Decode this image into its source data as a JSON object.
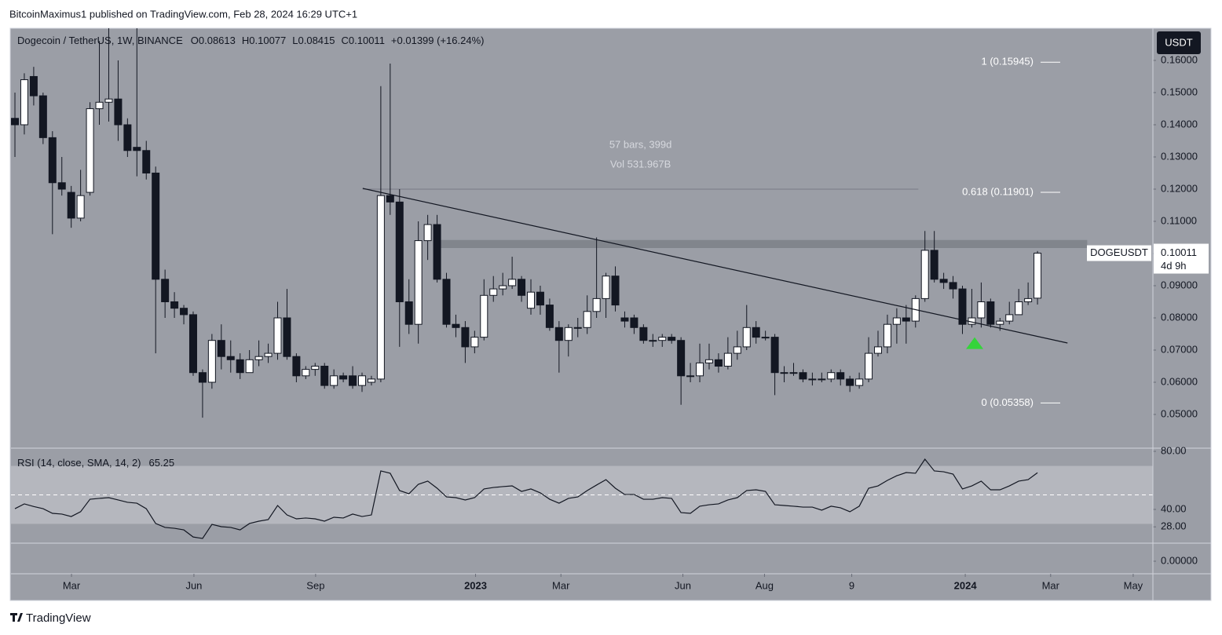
{
  "page": {
    "published": "BitcoinMaximus1 published on TradingView.com, Feb 28, 2024 16:29 UTC+1",
    "brand": "TradingView",
    "currency": "USDT",
    "lower_pane_ticks": [
      {
        "value": 0,
        "label": "0.00000"
      }
    ]
  },
  "chart_data": [
    {
      "type": "candlestick",
      "title": "Dogecoin / TetherUS, 1W, BINANCE",
      "ohlc_labels": [
        "O",
        "H",
        "L",
        "C"
      ],
      "change_label": "+0.01399 (+16.24%)",
      "last_price": {
        "symbol": "DOGEUSDT",
        "countdown": "4d 9h"
      },
      "x": [
        0,
        1,
        2,
        3,
        4,
        5,
        6,
        7,
        8,
        9,
        10,
        11,
        12,
        13,
        14,
        15,
        16,
        17,
        18,
        19,
        20,
        21,
        22,
        23,
        24,
        25,
        26,
        27,
        28,
        29,
        30,
        31,
        32,
        33,
        34,
        35,
        36,
        37,
        38,
        39,
        40,
        41,
        42,
        43,
        44,
        45,
        46,
        47,
        48,
        49,
        50,
        51,
        52,
        53,
        54,
        55,
        56,
        57,
        58,
        59,
        60,
        61,
        62,
        63,
        64,
        65,
        66,
        67,
        68,
        69,
        70,
        71,
        72,
        73,
        74,
        75,
        76,
        77,
        78,
        79,
        80,
        81,
        82,
        83,
        84,
        85,
        86,
        87,
        88,
        89,
        90,
        91,
        92,
        93,
        94,
        95,
        96,
        97,
        98,
        99,
        100,
        101,
        102,
        103,
        104,
        105,
        106,
        107,
        108,
        109
      ],
      "open": [
        0.142,
        0.14,
        0.155,
        0.149,
        0.136,
        0.122,
        0.119,
        0.111,
        0.119,
        0.145,
        0.147,
        0.148,
        0.14,
        0.133,
        0.132,
        0.125,
        0.092,
        0.085,
        0.083,
        0.081,
        0.063,
        0.06,
        0.073,
        0.068,
        0.067,
        0.063,
        0.067,
        0.068,
        0.069,
        0.08,
        0.068,
        0.062,
        0.064,
        0.065,
        0.059,
        0.062,
        0.062,
        0.059,
        0.06,
        0.061,
        0.118,
        0.116,
        0.085,
        0.078,
        0.104,
        0.109,
        0.092,
        0.078,
        0.077,
        0.071,
        0.074,
        0.087,
        0.089,
        0.09,
        0.092,
        0.083,
        0.088,
        0.084,
        0.077,
        0.073,
        0.077,
        0.077,
        0.082,
        0.086,
        0.093,
        0.08,
        0.08,
        0.077,
        0.073,
        0.073,
        0.074,
        0.073,
        0.062,
        0.062,
        0.066,
        0.067,
        0.065,
        0.069,
        0.071,
        0.077,
        0.074,
        0.074,
        0.063,
        0.063,
        0.063,
        0.061,
        0.061,
        0.061,
        0.063,
        0.061,
        0.059,
        0.061,
        0.069,
        0.071,
        0.078,
        0.08,
        0.079,
        0.086,
        0.101,
        0.092,
        0.091,
        0.089,
        0.078,
        0.08,
        0.085,
        0.078,
        0.079,
        0.081,
        0.085,
        0.08613
      ],
      "high": [
        0.15,
        0.156,
        0.158,
        0.15,
        0.138,
        0.13,
        0.121,
        0.126,
        0.147,
        0.166,
        0.17,
        0.16,
        0.142,
        0.17,
        0.135,
        0.127,
        0.095,
        0.088,
        0.084,
        0.082,
        0.064,
        0.075,
        0.078,
        0.073,
        0.069,
        0.07,
        0.073,
        0.072,
        0.085,
        0.089,
        0.069,
        0.065,
        0.066,
        0.066,
        0.064,
        0.063,
        0.065,
        0.063,
        0.062,
        0.152,
        0.159,
        0.12,
        0.092,
        0.11,
        0.112,
        0.112,
        0.094,
        0.081,
        0.079,
        0.076,
        0.092,
        0.093,
        0.094,
        0.099,
        0.093,
        0.092,
        0.09,
        0.086,
        0.079,
        0.078,
        0.08,
        0.087,
        0.105,
        0.094,
        0.096,
        0.082,
        0.081,
        0.078,
        0.075,
        0.075,
        0.075,
        0.074,
        0.066,
        0.072,
        0.072,
        0.069,
        0.074,
        0.076,
        0.084,
        0.079,
        0.076,
        0.075,
        0.065,
        0.066,
        0.064,
        0.063,
        0.063,
        0.064,
        0.064,
        0.062,
        0.063,
        0.074,
        0.076,
        0.081,
        0.083,
        0.084,
        0.087,
        0.107,
        0.107,
        0.094,
        0.093,
        0.09,
        0.089,
        0.091,
        0.086,
        0.08,
        0.085,
        0.089,
        0.091,
        0.10077
      ],
      "low": [
        0.13,
        0.137,
        0.146,
        0.134,
        0.106,
        0.118,
        0.108,
        0.11,
        0.118,
        0.14,
        0.141,
        0.135,
        0.13,
        0.124,
        0.123,
        0.069,
        0.08,
        0.08,
        0.078,
        0.062,
        0.049,
        0.058,
        0.064,
        0.063,
        0.061,
        0.063,
        0.065,
        0.066,
        0.067,
        0.067,
        0.06,
        0.061,
        0.062,
        0.058,
        0.058,
        0.06,
        0.058,
        0.057,
        0.059,
        0.06,
        0.112,
        0.071,
        0.075,
        0.072,
        0.098,
        0.091,
        0.077,
        0.074,
        0.066,
        0.069,
        0.073,
        0.085,
        0.087,
        0.089,
        0.085,
        0.081,
        0.081,
        0.076,
        0.063,
        0.068,
        0.074,
        0.075,
        0.08,
        0.08,
        0.082,
        0.077,
        0.075,
        0.072,
        0.071,
        0.071,
        0.072,
        0.053,
        0.06,
        0.06,
        0.064,
        0.063,
        0.064,
        0.067,
        0.07,
        0.072,
        0.073,
        0.056,
        0.06,
        0.062,
        0.06,
        0.059,
        0.06,
        0.06,
        0.059,
        0.057,
        0.058,
        0.06,
        0.068,
        0.069,
        0.072,
        0.072,
        0.077,
        0.085,
        0.091,
        0.089,
        0.086,
        0.075,
        0.077,
        0.077,
        0.077,
        0.076,
        0.078,
        0.081,
        0.084,
        0.08415
      ],
      "close": [
        0.14,
        0.154,
        0.149,
        0.136,
        0.122,
        0.12,
        0.111,
        0.118,
        0.145,
        0.147,
        0.148,
        0.14,
        0.132,
        0.132,
        0.125,
        0.092,
        0.085,
        0.083,
        0.081,
        0.063,
        0.06,
        0.073,
        0.068,
        0.067,
        0.063,
        0.067,
        0.068,
        0.069,
        0.08,
        0.068,
        0.062,
        0.064,
        0.065,
        0.059,
        0.062,
        0.061,
        0.059,
        0.062,
        0.061,
        0.118,
        0.116,
        0.085,
        0.078,
        0.104,
        0.109,
        0.092,
        0.078,
        0.077,
        0.071,
        0.074,
        0.087,
        0.089,
        0.09,
        0.092,
        0.087,
        0.088,
        0.084,
        0.077,
        0.073,
        0.077,
        0.077,
        0.082,
        0.086,
        0.093,
        0.084,
        0.079,
        0.077,
        0.073,
        0.073,
        0.074,
        0.073,
        0.062,
        0.062,
        0.066,
        0.067,
        0.065,
        0.069,
        0.071,
        0.077,
        0.074,
        0.074,
        0.063,
        0.063,
        0.063,
        0.061,
        0.061,
        0.061,
        0.063,
        0.061,
        0.059,
        0.061,
        0.069,
        0.071,
        0.078,
        0.08,
        0.079,
        0.086,
        0.101,
        0.092,
        0.091,
        0.089,
        0.078,
        0.08,
        0.085,
        0.078,
        0.079,
        0.081,
        0.085,
        0.086,
        0.10011
      ],
      "xlim": [
        -0.42,
        121.3
      ],
      "xticks": [
        {
          "value": 6.03,
          "label": "Mar"
        },
        {
          "value": 19.08,
          "label": "Jun"
        },
        {
          "value": 32.05,
          "label": "Sep"
        },
        {
          "value": 49.1,
          "label": "2023"
        },
        {
          "value": 58.2,
          "label": "Mar"
        },
        {
          "value": 71.2,
          "label": "Jun"
        },
        {
          "value": 79.9,
          "label": "Aug"
        },
        {
          "value": 89.2,
          "label": "9"
        },
        {
          "value": 101.3,
          "label": "2024"
        },
        {
          "value": 110.4,
          "label": "Mar"
        },
        {
          "value": 119.2,
          "label": "May"
        }
      ],
      "ylim": [
        0.03976,
        0.1695
      ],
      "yticks": [
        {
          "value": 0.05,
          "label": "0.05000"
        },
        {
          "value": 0.06,
          "label": "0.06000"
        },
        {
          "value": 0.07,
          "label": "0.07000"
        },
        {
          "value": 0.08,
          "label": "0.08000"
        },
        {
          "value": 0.09,
          "label": "0.09000"
        },
        {
          "value": 0.1,
          "label": "0.10000"
        },
        {
          "value": 0.11,
          "label": "0.11000"
        },
        {
          "value": 0.12,
          "label": "0.12000"
        },
        {
          "value": 0.13,
          "label": "0.13000"
        },
        {
          "value": 0.14,
          "label": "0.14000"
        },
        {
          "value": 0.15,
          "label": "0.15000"
        },
        {
          "value": 0.16,
          "label": "0.16000"
        }
      ],
      "fib_levels": [
        {
          "value": 0.15945,
          "label": "1 (0.15945)"
        },
        {
          "value": 0.11901,
          "label": "0.618 (0.11901)"
        },
        {
          "value": 0.05358,
          "label": "0 (0.05358)"
        }
      ],
      "measure": {
        "label": "57 bars, 399d",
        "volume": "Vol 531.967B",
        "x": [
          37.07,
          96.3
        ],
        "y": 0.12
      },
      "trendline": {
        "x": [
          37.07,
          112.2
        ],
        "y": [
          0.12024,
          0.0722
        ]
      },
      "zone": {
        "x": [
          45.27,
          114.3
        ],
        "y": [
          0.1017,
          0.1042
        ]
      },
      "signal": {
        "x": 102.3,
        "y": 0.0723,
        "color": "#35d43a"
      }
    },
    {
      "type": "line",
      "title": "RSI (14, close, SMA, 14, 2)",
      "color": "#131722",
      "x": [
        0,
        1,
        2,
        3,
        4,
        5,
        6,
        7,
        8,
        9,
        10,
        11,
        12,
        13,
        14,
        15,
        16,
        17,
        18,
        19,
        20,
        21,
        22,
        23,
        24,
        25,
        26,
        27,
        28,
        29,
        30,
        31,
        32,
        33,
        34,
        35,
        36,
        37,
        38,
        39,
        40,
        41,
        42,
        43,
        44,
        45,
        46,
        47,
        48,
        49,
        50,
        51,
        52,
        53,
        54,
        55,
        56,
        57,
        58,
        59,
        60,
        61,
        62,
        63,
        64,
        65,
        66,
        67,
        68,
        69,
        70,
        71,
        72,
        73,
        74,
        75,
        76,
        77,
        78,
        79,
        80,
        81,
        82,
        83,
        84,
        85,
        86,
        87,
        88,
        89,
        90,
        91,
        92,
        93,
        94,
        95,
        96,
        97,
        98,
        99,
        100,
        101,
        102,
        103,
        104,
        105,
        106,
        107,
        108,
        109
      ],
      "values": [
        40.5,
        43.8,
        42,
        40.5,
        37.3,
        36.8,
        35.1,
        38.4,
        47,
        47.6,
        48.1,
        46.5,
        44.9,
        44.3,
        40.5,
        30.3,
        27.6,
        27,
        25.9,
        21,
        20,
        29.7,
        28.1,
        27.6,
        25.9,
        30.3,
        31.9,
        33,
        42.7,
        36.2,
        33.5,
        34.1,
        33.5,
        31.9,
        34.6,
        34.1,
        36.8,
        35.1,
        36.2,
        66.5,
        64.9,
        53,
        50.8,
        57.3,
        59.5,
        54.6,
        48.6,
        48.1,
        46.5,
        48.1,
        54.1,
        55.1,
        55.7,
        56.2,
        52.4,
        54.1,
        51.4,
        47,
        44.3,
        47.6,
        48.6,
        53,
        56.8,
        60.5,
        54.6,
        50.3,
        50.3,
        47,
        47,
        48.1,
        47.6,
        37.8,
        37.3,
        42.2,
        43.2,
        43.8,
        46.5,
        48.1,
        53,
        53.5,
        52.4,
        43.2,
        42.7,
        42.2,
        41.6,
        41.6,
        39.5,
        42.2,
        41.1,
        38.4,
        42.2,
        54.6,
        56.2,
        60,
        63.2,
        65.4,
        64.9,
        74.6,
        66.5,
        65.9,
        64.3,
        54.1,
        56.2,
        59.5,
        53.5,
        53.5,
        56.2,
        59.5,
        60.5,
        65.25
      ],
      "xlim": [
        -0.42,
        121.3
      ],
      "ylim": [
        16.76,
        81.62
      ],
      "yticks": [
        {
          "value": 80,
          "label": "80.00"
        },
        {
          "value": 40,
          "label": "40.00"
        },
        {
          "value": 28,
          "label": "28.00"
        }
      ],
      "band": [
        70,
        30
      ],
      "midline": 50
    }
  ]
}
